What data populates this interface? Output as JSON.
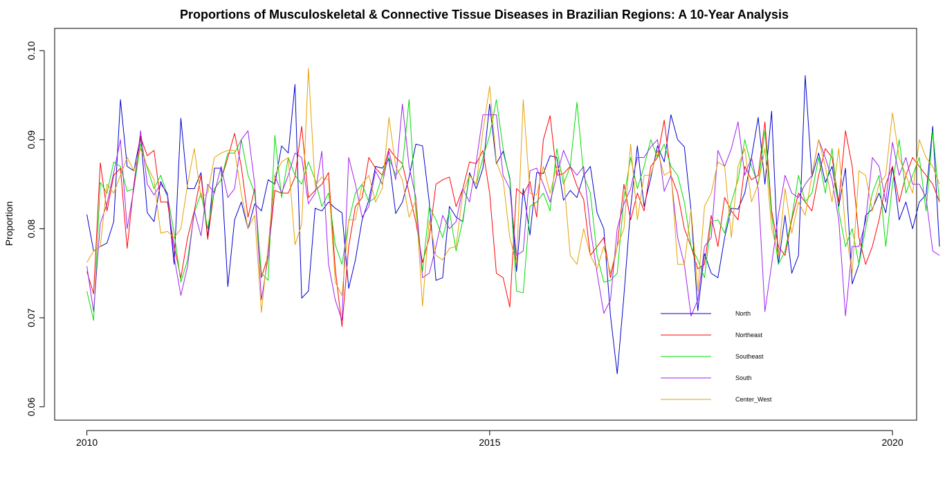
{
  "chart_data": {
    "type": "line",
    "title": "Proportions of Musculoskeletal & Connective Tissue Diseases in Brazilian Regions: A 10-Year Analysis",
    "xlabel": "",
    "ylabel": "Proportion",
    "xlim": [
      2009.6,
      2020.3
    ],
    "ylim": [
      0.0585,
      0.1025
    ],
    "x_ticks": [
      2010,
      2015,
      2020
    ],
    "x_tick_labels": [
      "2010",
      "2015",
      "2020"
    ],
    "y_ticks": [
      0.06,
      0.07,
      0.08,
      0.09,
      0.1
    ],
    "y_tick_labels": [
      "0.06",
      "0.07",
      "0.08",
      "0.09",
      "0.10"
    ],
    "x_start": 2010,
    "x_step": 0.08333333,
    "legend_position": "bottom-right",
    "grid": false,
    "series": [
      {
        "name": "North",
        "color": "#0000CD",
        "values": [
          0.0816,
          0.0775,
          0.078,
          0.0784,
          0.0808,
          0.0945,
          0.087,
          0.0865,
          0.0904,
          0.0818,
          0.0808,
          0.0853,
          0.0837,
          0.076,
          0.0924,
          0.0845,
          0.0845,
          0.0863,
          0.079,
          0.0868,
          0.0868,
          0.0735,
          0.081,
          0.083,
          0.08,
          0.0828,
          0.082,
          0.0855,
          0.085,
          0.0893,
          0.0885,
          0.0962,
          0.0722,
          0.073,
          0.0823,
          0.082,
          0.083,
          0.0823,
          0.0818,
          0.0733,
          0.0765,
          0.081,
          0.0832,
          0.087,
          0.0868,
          0.0878,
          0.0817,
          0.083,
          0.0858,
          0.0895,
          0.0893,
          0.083,
          0.0742,
          0.0745,
          0.0825,
          0.0813,
          0.0808,
          0.0863,
          0.0845,
          0.0868,
          0.094,
          0.0873,
          0.0887,
          0.0857,
          0.0752,
          0.0845,
          0.0793,
          0.0863,
          0.0862,
          0.0882,
          0.088,
          0.0832,
          0.0843,
          0.0835,
          0.086,
          0.087,
          0.0818,
          0.08,
          0.0702,
          0.0637,
          0.0725,
          0.0823,
          0.0893,
          0.0825,
          0.0857,
          0.0893,
          0.0875,
          0.0928,
          0.09,
          0.0892,
          0.082,
          0.0708,
          0.0772,
          0.075,
          0.0745,
          0.079,
          0.0823,
          0.0822,
          0.084,
          0.088,
          0.0925,
          0.085,
          0.0932,
          0.076,
          0.0815,
          0.075,
          0.077,
          0.0972,
          0.0858,
          0.0885,
          0.0852,
          0.087,
          0.0825,
          0.0868,
          0.0738,
          0.076,
          0.0815,
          0.0822,
          0.084,
          0.0818,
          0.087,
          0.081,
          0.083,
          0.08,
          0.083,
          0.0838,
          0.0915,
          0.078
        ]
      },
      {
        "name": "Northeast",
        "color": "#FF0000",
        "values": [
          0.0752,
          0.0727,
          0.0874,
          0.082,
          0.086,
          0.0868,
          0.0778,
          0.085,
          0.0903,
          0.0882,
          0.0888,
          0.083,
          0.083,
          0.078,
          0.0745,
          0.079,
          0.082,
          0.086,
          0.0788,
          0.0845,
          0.0855,
          0.088,
          0.0907,
          0.087,
          0.0813,
          0.0845,
          0.0745,
          0.077,
          0.0843,
          0.084,
          0.084,
          0.0858,
          0.0915,
          0.0835,
          0.0843,
          0.085,
          0.0863,
          0.0755,
          0.069,
          0.078,
          0.0825,
          0.0835,
          0.088,
          0.0868,
          0.086,
          0.089,
          0.088,
          0.0873,
          0.084,
          0.0808,
          0.0762,
          0.079,
          0.085,
          0.0855,
          0.0858,
          0.0825,
          0.0845,
          0.0875,
          0.0873,
          0.0888,
          0.084,
          0.075,
          0.0745,
          0.0712,
          0.0845,
          0.0838,
          0.0853,
          0.0813,
          0.09,
          0.0927,
          0.086,
          0.0862,
          0.087,
          0.0848,
          0.0833,
          0.077,
          0.078,
          0.079,
          0.0745,
          0.078,
          0.085,
          0.081,
          0.084,
          0.082,
          0.087,
          0.088,
          0.0922,
          0.086,
          0.084,
          0.08,
          0.078,
          0.0755,
          0.076,
          0.0815,
          0.078,
          0.0835,
          0.082,
          0.081,
          0.087,
          0.0855,
          0.086,
          0.092,
          0.082,
          0.078,
          0.077,
          0.081,
          0.084,
          0.083,
          0.082,
          0.086,
          0.089,
          0.088,
          0.083,
          0.091,
          0.087,
          0.079,
          0.076,
          0.078,
          0.081,
          0.085,
          0.087,
          0.083,
          0.086,
          0.088,
          0.087,
          0.086,
          0.085,
          0.083
        ]
      },
      {
        "name": "Southeast",
        "color": "#00DD00",
        "values": [
          0.073,
          0.0697,
          0.0852,
          0.084,
          0.0875,
          0.087,
          0.0842,
          0.0845,
          0.0895,
          0.0868,
          0.0845,
          0.086,
          0.0838,
          0.0795,
          0.074,
          0.0765,
          0.0818,
          0.084,
          0.08,
          0.0845,
          0.0855,
          0.0885,
          0.0885,
          0.09,
          0.086,
          0.084,
          0.075,
          0.0742,
          0.0905,
          0.0835,
          0.088,
          0.086,
          0.085,
          0.0875,
          0.0855,
          0.0825,
          0.084,
          0.0782,
          0.076,
          0.0808,
          0.084,
          0.085,
          0.083,
          0.0835,
          0.086,
          0.088,
          0.086,
          0.087,
          0.0945,
          0.082,
          0.0752,
          0.0825,
          0.081,
          0.079,
          0.082,
          0.0775,
          0.081,
          0.086,
          0.085,
          0.088,
          0.0905,
          0.0945,
          0.089,
          0.0855,
          0.073,
          0.0728,
          0.0825,
          0.083,
          0.084,
          0.082,
          0.089,
          0.085,
          0.087,
          0.0942,
          0.086,
          0.084,
          0.077,
          0.074,
          0.0742,
          0.075,
          0.0835,
          0.088,
          0.0845,
          0.087,
          0.09,
          0.088,
          0.0895,
          0.087,
          0.086,
          0.083,
          0.078,
          0.0765,
          0.0745,
          0.0808,
          0.081,
          0.0795,
          0.083,
          0.0855,
          0.09,
          0.087,
          0.085,
          0.091,
          0.0815,
          0.076,
          0.0775,
          0.0812,
          0.086,
          0.083,
          0.084,
          0.088,
          0.084,
          0.089,
          0.082,
          0.078,
          0.08,
          0.076,
          0.08,
          0.084,
          0.086,
          0.078,
          0.085,
          0.09,
          0.084,
          0.086,
          0.088,
          0.082,
          0.091,
          0.083
        ]
      },
      {
        "name": "South",
        "color": "#A020F0",
        "values": [
          0.0758,
          0.0707,
          0.0806,
          0.0828,
          0.0863,
          0.09,
          0.08,
          0.0845,
          0.091,
          0.085,
          0.0838,
          0.085,
          0.084,
          0.0768,
          0.0725,
          0.0758,
          0.082,
          0.0792,
          0.085,
          0.084,
          0.087,
          0.0835,
          0.0845,
          0.09,
          0.091,
          0.085,
          0.072,
          0.0768,
          0.086,
          0.084,
          0.086,
          0.0885,
          0.088,
          0.0828,
          0.084,
          0.0887,
          0.076,
          0.072,
          0.0697,
          0.088,
          0.085,
          0.0813,
          0.0825,
          0.0865,
          0.085,
          0.0887,
          0.0855,
          0.094,
          0.087,
          0.0835,
          0.0745,
          0.075,
          0.078,
          0.0815,
          0.08,
          0.0808,
          0.0845,
          0.083,
          0.0875,
          0.0928,
          0.0928,
          0.0928,
          0.086,
          0.0845,
          0.077,
          0.0775,
          0.0865,
          0.0868,
          0.085,
          0.083,
          0.086,
          0.0888,
          0.087,
          0.086,
          0.087,
          0.08,
          0.075,
          0.0705,
          0.072,
          0.08,
          0.0828,
          0.0845,
          0.088,
          0.088,
          0.0892,
          0.09,
          0.0842,
          0.086,
          0.079,
          0.076,
          0.0702,
          0.072,
          0.078,
          0.079,
          0.0888,
          0.087,
          0.089,
          0.092,
          0.086,
          0.088,
          0.0845,
          0.0707,
          0.076,
          0.0815,
          0.086,
          0.084,
          0.0835,
          0.085,
          0.086,
          0.09,
          0.088,
          0.0855,
          0.081,
          0.0702,
          0.078,
          0.078,
          0.0808,
          0.088,
          0.087,
          0.083,
          0.0897,
          0.086,
          0.088,
          0.085,
          0.085,
          0.0835,
          0.0775,
          0.077
        ]
      },
      {
        "name": "Center_West",
        "color": "#E6A000",
        "values": [
          0.0762,
          0.0775,
          0.078,
          0.085,
          0.084,
          0.086,
          0.088,
          0.0865,
          0.089,
          0.087,
          0.0855,
          0.0795,
          0.0797,
          0.079,
          0.08,
          0.085,
          0.089,
          0.0835,
          0.084,
          0.088,
          0.0885,
          0.0888,
          0.0888,
          0.084,
          0.08,
          0.0815,
          0.0706,
          0.078,
          0.086,
          0.0875,
          0.088,
          0.0782,
          0.0805,
          0.098,
          0.0848,
          0.0858,
          0.0855,
          0.074,
          0.0725,
          0.081,
          0.081,
          0.085,
          0.086,
          0.083,
          0.0845,
          0.0925,
          0.087,
          0.0855,
          0.0813,
          0.0832,
          0.0713,
          0.081,
          0.077,
          0.0765,
          0.0778,
          0.078,
          0.084,
          0.086,
          0.085,
          0.091,
          0.096,
          0.0875,
          0.0855,
          0.079,
          0.076,
          0.0945,
          0.084,
          0.0838,
          0.087,
          0.084,
          0.087,
          0.086,
          0.077,
          0.076,
          0.08,
          0.077,
          0.0755,
          0.078,
          0.075,
          0.078,
          0.08,
          0.0895,
          0.081,
          0.086,
          0.086,
          0.0888,
          0.086,
          0.0865,
          0.076,
          0.076,
          0.0822,
          0.073,
          0.0825,
          0.084,
          0.0875,
          0.087,
          0.079,
          0.087,
          0.089,
          0.083,
          0.085,
          0.089,
          0.08,
          0.077,
          0.0845,
          0.0795,
          0.083,
          0.0815,
          0.086,
          0.09,
          0.087,
          0.083,
          0.089,
          0.08,
          0.075,
          0.0865,
          0.086,
          0.082,
          0.085,
          0.086,
          0.093,
          0.088,
          0.086,
          0.084,
          0.09,
          0.088,
          0.087,
          0.085
        ]
      }
    ]
  }
}
